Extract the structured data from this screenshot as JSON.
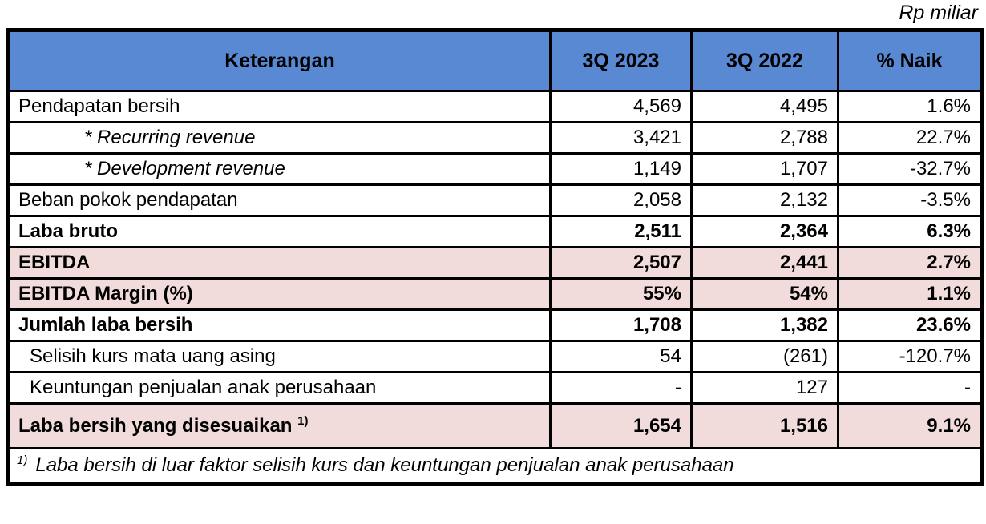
{
  "page": {
    "unit_label": "Rp miliar"
  },
  "colors": {
    "header_bg": "#5889D2",
    "highlight_bg": "#F2DCDB",
    "border": "#000000"
  },
  "table": {
    "columns": [
      "Keterangan",
      "3Q 2023",
      "3Q 2022",
      "% Naik"
    ],
    "rows": [
      {
        "label": "Pendapatan bersih",
        "q3_2023": "4,569",
        "q3_2022": "4,495",
        "pct_naik": "1.6%",
        "bold": false,
        "italic": false,
        "indent": "none",
        "highlight": false,
        "tall": false
      },
      {
        "label": "* Recurring revenue",
        "q3_2023": "3,421",
        "q3_2022": "2,788",
        "pct_naik": "22.7%",
        "bold": false,
        "italic": true,
        "indent": "deep",
        "highlight": false,
        "tall": false
      },
      {
        "label": "* Development revenue",
        "q3_2023": "1,149",
        "q3_2022": "1,707",
        "pct_naik": "-32.7%",
        "bold": false,
        "italic": true,
        "indent": "deep",
        "highlight": false,
        "tall": false
      },
      {
        "label": "Beban pokok pendapatan",
        "q3_2023": "2,058",
        "q3_2022": "2,132",
        "pct_naik": "-3.5%",
        "bold": false,
        "italic": false,
        "indent": "none",
        "highlight": false,
        "tall": false
      },
      {
        "label": "Laba bruto",
        "q3_2023": "2,511",
        "q3_2022": "2,364",
        "pct_naik": "6.3%",
        "bold": true,
        "italic": false,
        "indent": "none",
        "highlight": false,
        "tall": false
      },
      {
        "label": "EBITDA",
        "q3_2023": "2,507",
        "q3_2022": "2,441",
        "pct_naik": "2.7%",
        "bold": true,
        "italic": false,
        "indent": "none",
        "highlight": true,
        "tall": false
      },
      {
        "label": "EBITDA Margin (%)",
        "q3_2023": "55%",
        "q3_2022": "54%",
        "pct_naik": "1.1%",
        "bold": true,
        "italic": false,
        "indent": "none",
        "highlight": true,
        "tall": false
      },
      {
        "label": "Jumlah laba bersih",
        "q3_2023": "1,708",
        "q3_2022": "1,382",
        "pct_naik": "23.6%",
        "bold": true,
        "italic": false,
        "indent": "none",
        "highlight": false,
        "tall": false
      },
      {
        "label": "Selisih kurs mata uang asing",
        "q3_2023": "54",
        "q3_2022": "(261)",
        "pct_naik": "-120.7%",
        "bold": false,
        "italic": false,
        "indent": "sub",
        "highlight": false,
        "tall": false
      },
      {
        "label": "Keuntungan penjualan anak perusahaan",
        "q3_2023": "-",
        "q3_2022": "127",
        "pct_naik": "-",
        "bold": false,
        "italic": false,
        "indent": "sub",
        "highlight": false,
        "tall": false
      },
      {
        "label": "Laba bersih yang disesuaikan",
        "sup": "1)",
        "q3_2023": "1,654",
        "q3_2022": "1,516",
        "pct_naik": "9.1%",
        "bold": true,
        "italic": false,
        "indent": "none",
        "highlight": true,
        "tall": true
      }
    ],
    "footnote": {
      "marker": "1)",
      "text": "Laba bersih di luar faktor selisih kurs dan keuntungan penjualan anak perusahaan"
    }
  }
}
